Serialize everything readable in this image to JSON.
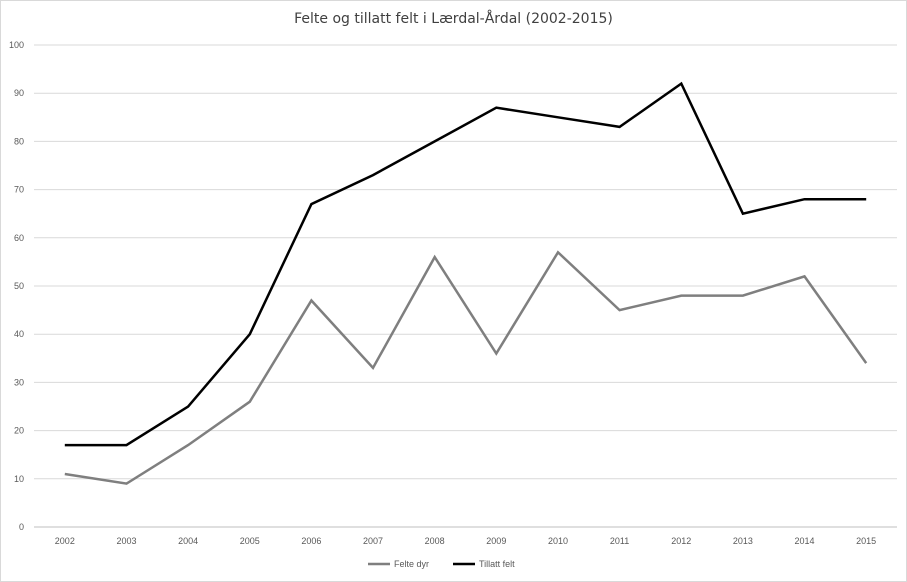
{
  "chart_data": {
    "type": "line",
    "title": "Felte og tillatt  felt i Lærdal-Årdal (2002-2015)",
    "xlabel": "",
    "ylabel": "",
    "categories": [
      "2002",
      "2003",
      "2004",
      "2005",
      "2006",
      "2007",
      "2008",
      "2009",
      "2010",
      "2011",
      "2012",
      "2013",
      "2014",
      "2015"
    ],
    "ylim": [
      0,
      100
    ],
    "yticks": [
      "0",
      "10",
      "20",
      "30",
      "40",
      "50",
      "60",
      "70",
      "80",
      "90",
      "100"
    ],
    "grid": true,
    "legend_position": "bottom",
    "series": [
      {
        "name": "Felte dyr",
        "color": "#7f7f7f",
        "values": [
          11,
          9,
          17,
          26,
          47,
          33,
          56,
          36,
          57,
          45,
          48,
          48,
          52,
          34
        ]
      },
      {
        "name": "Tillatt felt",
        "color": "#000000",
        "values": [
          17,
          17,
          25,
          40,
          67,
          73,
          80,
          87,
          85,
          83,
          92,
          65,
          68,
          68
        ]
      }
    ]
  }
}
